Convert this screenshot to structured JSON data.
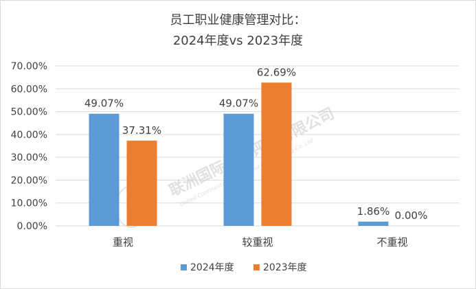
{
  "chart_data": {
    "type": "bar",
    "title_line1": "员工职业健康管理对比：",
    "title_line2": "2024年度vs 2023年度",
    "categories": [
      "重视",
      "较重视",
      "不重视"
    ],
    "series": [
      {
        "name": "2024年度",
        "color": "#5b9bd5",
        "values": [
          49.07,
          49.07,
          1.86
        ]
      },
      {
        "name": "2023年度",
        "color": "#ed7d31",
        "values": [
          37.31,
          62.69,
          0.0
        ]
      }
    ],
    "value_labels": [
      [
        "49.07%",
        "49.07%",
        "1.86%"
      ],
      [
        "37.31%",
        "62.69%",
        "0.00%"
      ]
    ],
    "y_ticks": [
      "0.00%",
      "10.00%",
      "20.00%",
      "30.00%",
      "40.00%",
      "50.00%",
      "60.00%",
      "70.00%"
    ],
    "ylim": [
      0,
      70
    ],
    "grid": true,
    "legend_position": "bottom",
    "watermark": "联洲国际信用评级有限公司",
    "watermark_en": "United Continental International Credit Rating Co.,Ltd"
  }
}
